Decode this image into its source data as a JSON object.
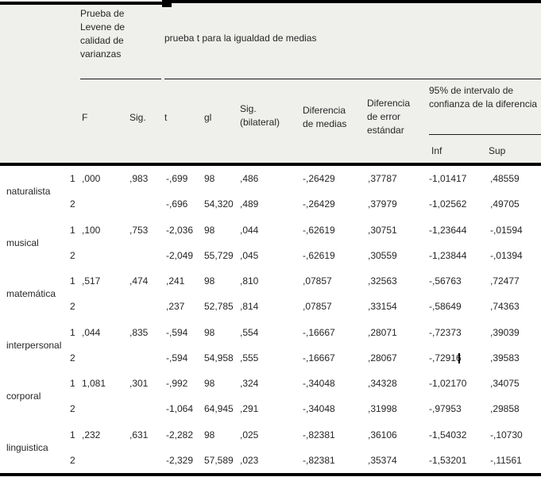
{
  "colors": {
    "header_background": "#eff0ec",
    "border": "#000000",
    "text": "#262626"
  },
  "table": {
    "header": {
      "levene_title": "Prueba de Levene de calidad de varianzas",
      "ttest_title": "prueba t para la igualdad de medias",
      "col_f": "F",
      "col_sig": "Sig.",
      "col_t": "t",
      "col_gl": "gl",
      "col_sig_bilateral": "Sig. (bilateral)",
      "col_dif_medias": "Diferencia de medias",
      "col_dif_error": "Diferencia de error estándar",
      "ci_title": "95% de intervalo de confianza de la diferencia",
      "col_inf": "Inf",
      "col_sup": "Sup"
    },
    "groups": [
      {
        "label": "naturalista",
        "rows": [
          {
            "num": "1",
            "f": ",000",
            "sig": ",983",
            "t": "-,699",
            "gl": "98",
            "sigbil": ",486",
            "difmed": "-,26429",
            "diferr": ",37787",
            "inf": "-1,01417",
            "sup": ",48559"
          },
          {
            "num": "2",
            "f": "",
            "sig": "",
            "t": "-,696",
            "gl": "54,320",
            "sigbil": ",489",
            "difmed": "-,26429",
            "diferr": ",37979",
            "inf": "-1,02562",
            "sup": ",49705"
          }
        ]
      },
      {
        "label": "musical",
        "rows": [
          {
            "num": "1",
            "f": ",100",
            "sig": ",753",
            "t": "-2,036",
            "gl": "98",
            "sigbil": ",044",
            "difmed": "-,62619",
            "diferr": ",30751",
            "inf": "-1,23644",
            "sup": "-,01594"
          },
          {
            "num": "2",
            "f": "",
            "sig": "",
            "t": "-2,049",
            "gl": "55,729",
            "sigbil": ",045",
            "difmed": "-,62619",
            "diferr": ",30559",
            "inf": "-1,23844",
            "sup": "-,01394"
          }
        ]
      },
      {
        "label": "matemática",
        "rows": [
          {
            "num": "1",
            "f": ",517",
            "sig": ",474",
            "t": ",241",
            "gl": "98",
            "sigbil": ",810",
            "difmed": ",07857",
            "diferr": ",32563",
            "inf": "-,56763",
            "sup": ",72477"
          },
          {
            "num": "2",
            "f": "",
            "sig": "",
            "t": ",237",
            "gl": "52,785",
            "sigbil": ",814",
            "difmed": ",07857",
            "diferr": ",33154",
            "inf": "-,58649",
            "sup": ",74363"
          }
        ]
      },
      {
        "label": "interpersonal",
        "rows": [
          {
            "num": "1",
            "f": ",044",
            "sig": ",835",
            "t": "-,594",
            "gl": "98",
            "sigbil": ",554",
            "difmed": "-,16667",
            "diferr": ",28071",
            "inf": "-,72373",
            "sup": ",39039"
          },
          {
            "num": "2",
            "f": "",
            "sig": "",
            "t": "-,594",
            "gl": "54,958",
            "sigbil": ",555",
            "difmed": "-,16667",
            "diferr": ",28067",
            "inf": "-,72916",
            "sup": ",39583"
          }
        ]
      },
      {
        "label": "corporal",
        "rows": [
          {
            "num": "1",
            "f": "1,081",
            "sig": ",301",
            "t": "-,992",
            "gl": "98",
            "sigbil": ",324",
            "difmed": "-,34048",
            "diferr": ",34328",
            "inf": "-1,02170",
            "sup": ",34075"
          },
          {
            "num": "2",
            "f": "",
            "sig": "",
            "t": "-1,064",
            "gl": "64,945",
            "sigbil": ",291",
            "difmed": "-,34048",
            "diferr": ",31998",
            "inf": "-,97953",
            "sup": ",29858"
          }
        ]
      },
      {
        "label": "linguistica",
        "rows": [
          {
            "num": "1",
            "f": ",232",
            "sig": ",631",
            "t": "-2,282",
            "gl": "98",
            "sigbil": ",025",
            "difmed": "-,82381",
            "diferr": ",36106",
            "inf": "-1,54032",
            "sup": "-,10730"
          },
          {
            "num": "2",
            "f": "",
            "sig": "",
            "t": "-2,329",
            "gl": "57,589",
            "sigbil": ",023",
            "difmed": "-,82381",
            "diferr": ",35374",
            "inf": "-1,53201",
            "sup": "-,11561"
          }
        ]
      }
    ]
  }
}
